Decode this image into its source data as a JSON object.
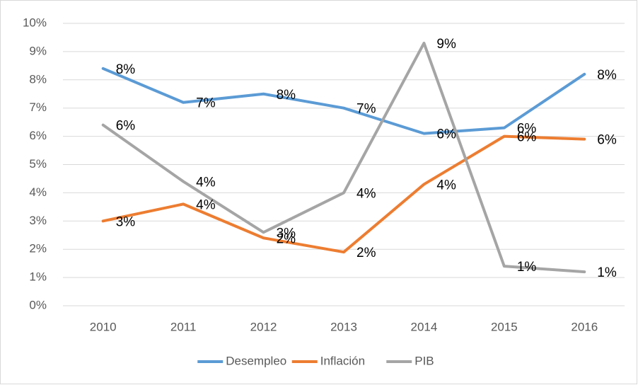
{
  "chart_data": {
    "type": "line",
    "categories": [
      "2010",
      "2011",
      "2012",
      "2013",
      "2014",
      "2015",
      "2016"
    ],
    "series": [
      {
        "name": "Desempleo",
        "color": "#5b9bd5",
        "values": [
          8.4,
          7.2,
          7.5,
          7.0,
          6.1,
          6.3,
          8.2
        ],
        "value_labels": [
          "8%",
          "7%",
          "8%",
          "7%",
          "6%",
          "6%",
          "8%"
        ]
      },
      {
        "name": "Inflación",
        "color": "#ed7d31",
        "values": [
          3.0,
          3.6,
          2.4,
          1.9,
          4.3,
          6.0,
          5.9
        ],
        "value_labels": [
          "3%",
          "4%",
          "2%",
          "2%",
          "4%",
          "6%",
          "6%"
        ]
      },
      {
        "name": "PIB",
        "color": "#a5a5a5",
        "values": [
          6.4,
          4.4,
          2.6,
          4.0,
          9.3,
          1.4,
          1.2
        ],
        "value_labels": [
          "6%",
          "4%",
          "3%",
          "4%",
          "9%",
          "1%",
          "1%"
        ]
      }
    ],
    "ylim": [
      0,
      10
    ],
    "yticks": [
      {
        "value": 0,
        "label": "0%"
      },
      {
        "value": 1,
        "label": "1%"
      },
      {
        "value": 2,
        "label": "2%"
      },
      {
        "value": 3,
        "label": "3%"
      },
      {
        "value": 4,
        "label": "4%"
      },
      {
        "value": 5,
        "label": "5%"
      },
      {
        "value": 6,
        "label": "6%"
      },
      {
        "value": 7,
        "label": "7%"
      },
      {
        "value": 8,
        "label": "8%"
      },
      {
        "value": 9,
        "label": "9%"
      },
      {
        "value": 10,
        "label": "10%"
      }
    ],
    "grid": true,
    "legend": "bottom"
  }
}
